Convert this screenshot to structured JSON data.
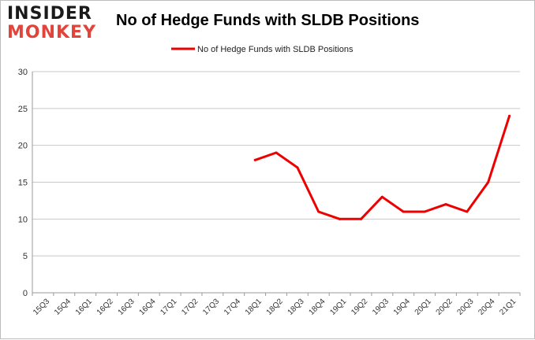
{
  "brand": {
    "line1": "INSIDER",
    "line2": "MONKEY"
  },
  "colors": {
    "series": "#ee0000",
    "logo_accent": "#e0443a",
    "grid": "#c8c8c8"
  },
  "chart_data": {
    "type": "line",
    "title": "No of Hedge Funds with SLDB Positions",
    "legend": "top-center",
    "grid": true,
    "xlabel": "",
    "ylabel": "",
    "ylim": [
      0,
      30
    ],
    "yticks": [
      0,
      5,
      10,
      15,
      20,
      25,
      30
    ],
    "categories": [
      "15Q3",
      "15Q4",
      "16Q1",
      "16Q2",
      "16Q3",
      "16Q4",
      "17Q1",
      "17Q2",
      "17Q3",
      "17Q4",
      "18Q1",
      "18Q2",
      "18Q3",
      "18Q4",
      "19Q1",
      "19Q2",
      "19Q3",
      "19Q4",
      "20Q1",
      "20Q2",
      "20Q3",
      "20Q4",
      "21Q1"
    ],
    "series": [
      {
        "name": "No of Hedge Funds with SLDB Positions",
        "values": [
          null,
          null,
          null,
          null,
          null,
          null,
          null,
          null,
          null,
          null,
          18,
          19,
          17,
          11,
          10,
          10,
          13,
          11,
          11,
          12,
          11,
          15,
          24
        ]
      }
    ]
  }
}
